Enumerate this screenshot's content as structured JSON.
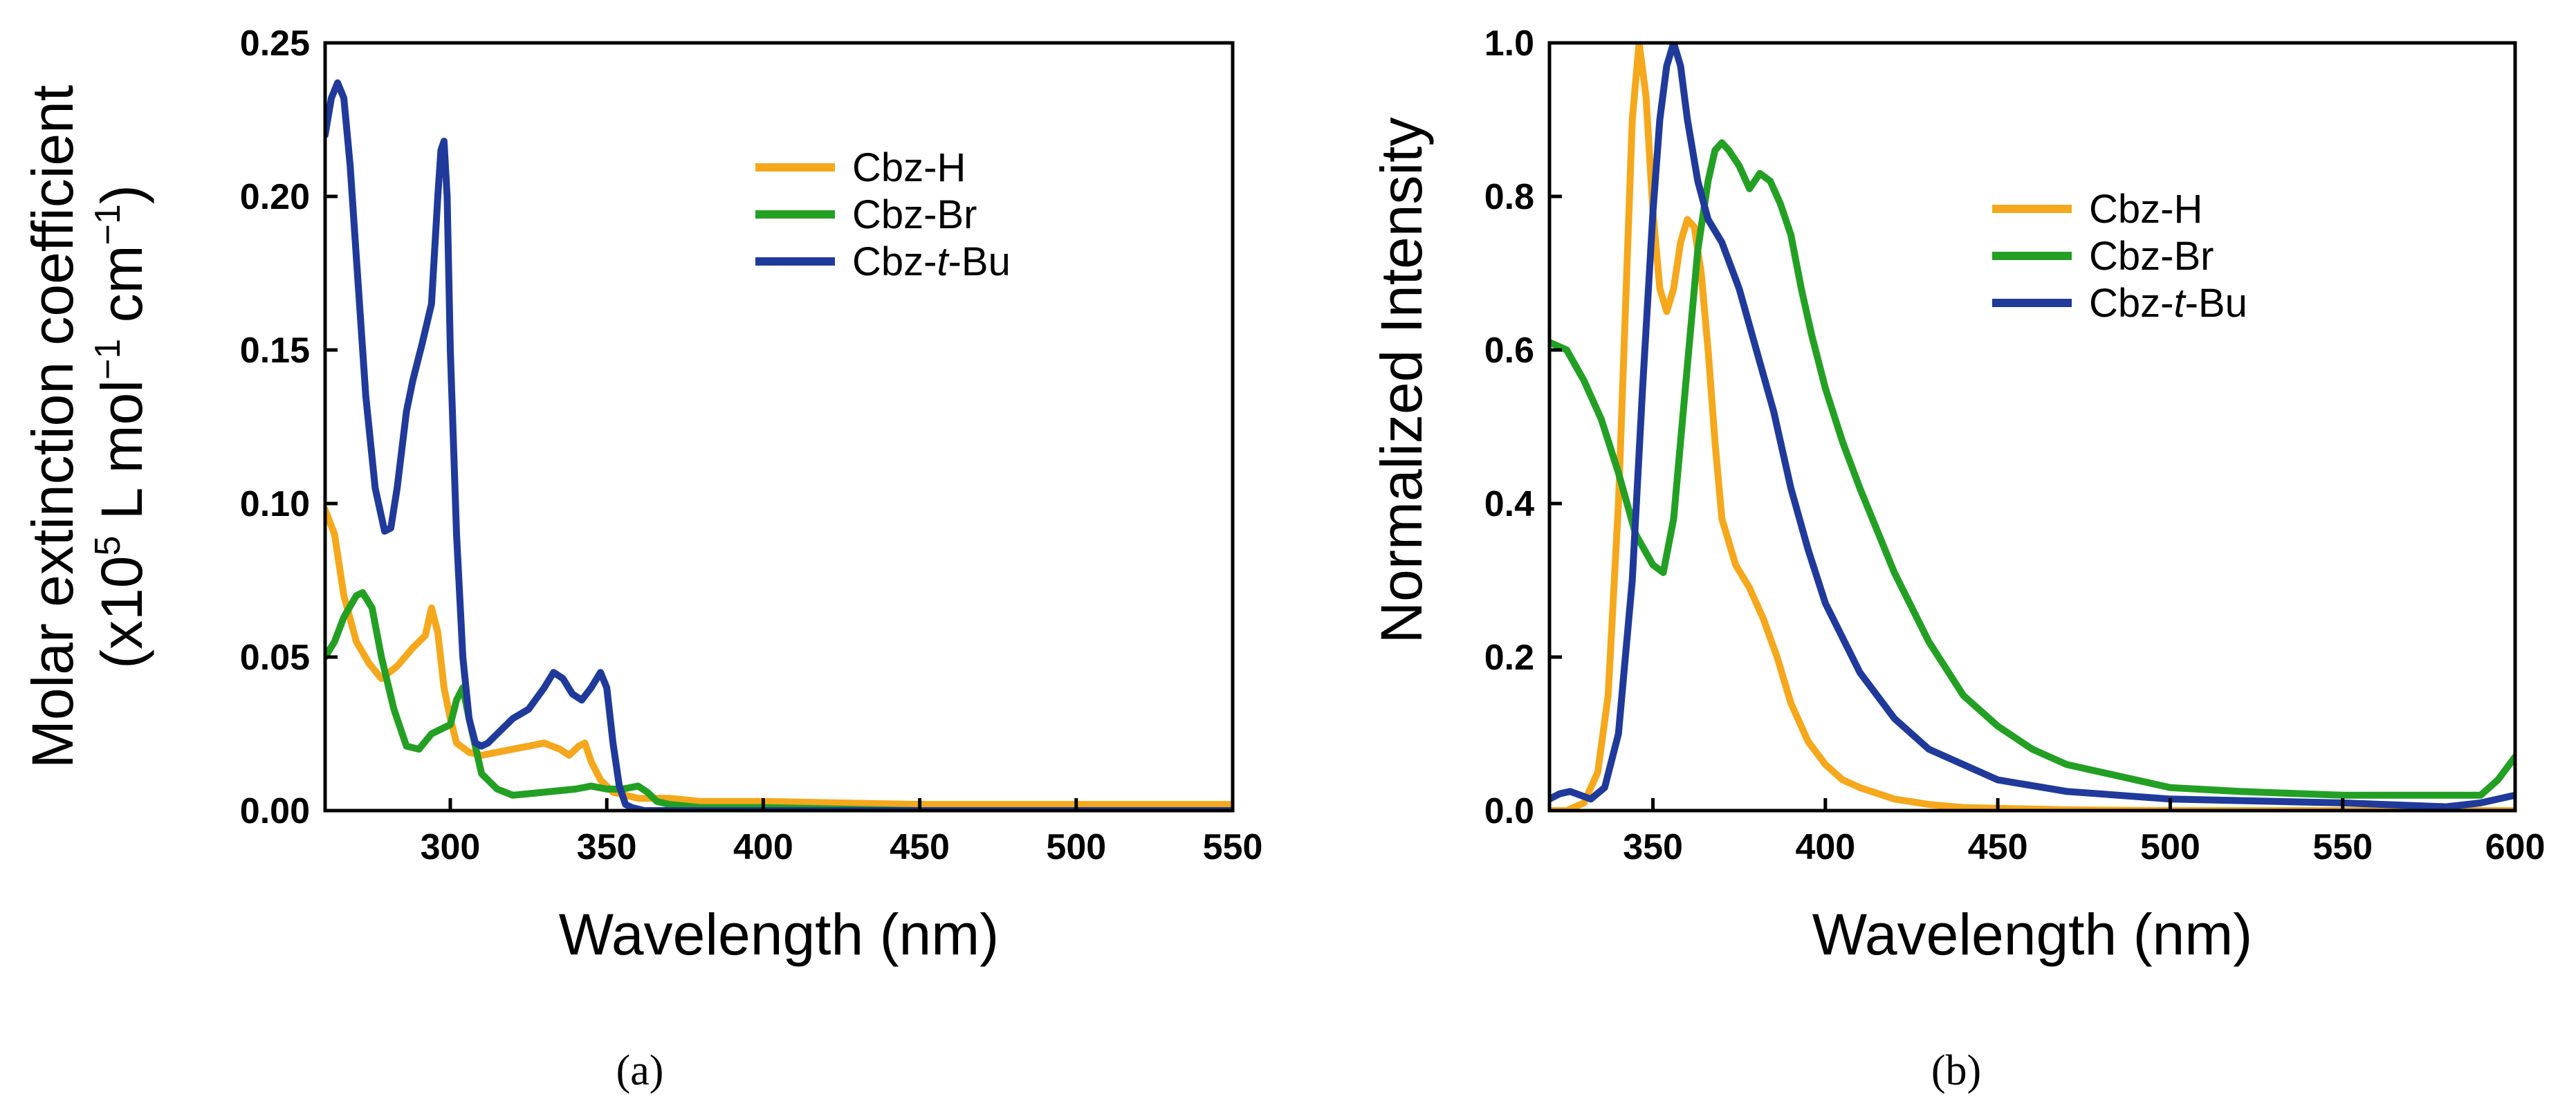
{
  "colors": {
    "Cbz-H": "#F5A81C",
    "Cbz-Br": "#23A023",
    "Cbz-t-Bu": "#1F3A9A"
  },
  "chart_data": [
    {
      "type": "line",
      "panel_label": "(a)",
      "title": "",
      "xlabel": "Wavelength (nm)",
      "ylabel_line1": "Molar extinction coefficient",
      "ylabel_line2_parts": [
        "(x10",
        "5",
        " L mol",
        "−1",
        " cm",
        "−1",
        ")"
      ],
      "xlim": [
        260,
        550
      ],
      "ylim": [
        0,
        0.25
      ],
      "xticks": [
        300,
        350,
        400,
        450,
        500,
        550
      ],
      "yticks": [
        0.0,
        0.05,
        0.1,
        0.15,
        0.2,
        0.25
      ],
      "ytick_labels": [
        "0.00",
        "0.05",
        "0.10",
        "0.15",
        "0.20",
        "0.25"
      ],
      "legend_position": "top-right",
      "legend": [
        {
          "prefix": "Cbz-",
          "italic": "",
          "suffix": "H",
          "series": "Cbz-H"
        },
        {
          "prefix": "Cbz-",
          "italic": "",
          "suffix": "Br",
          "series": "Cbz-Br"
        },
        {
          "prefix": "Cbz-",
          "italic": "t",
          "suffix": "-Bu",
          "series": "Cbz-t-Bu"
        }
      ],
      "series": [
        {
          "name": "Cbz-H",
          "x": [
            260,
            263,
            266,
            270,
            274,
            278,
            283,
            288,
            292,
            294,
            296,
            298,
            300,
            302,
            306,
            310,
            315,
            320,
            325,
            330,
            335,
            338,
            341,
            343,
            345,
            348,
            352,
            356,
            360,
            365,
            370,
            380,
            400,
            450,
            500,
            550
          ],
          "y": [
            0.098,
            0.09,
            0.07,
            0.055,
            0.048,
            0.043,
            0.047,
            0.053,
            0.057,
            0.066,
            0.058,
            0.04,
            0.03,
            0.022,
            0.019,
            0.018,
            0.019,
            0.02,
            0.021,
            0.022,
            0.02,
            0.018,
            0.021,
            0.022,
            0.016,
            0.01,
            0.006,
            0.005,
            0.004,
            0.004,
            0.004,
            0.003,
            0.003,
            0.002,
            0.002,
            0.002
          ]
        },
        {
          "name": "Cbz-Br",
          "x": [
            260,
            263,
            266,
            270,
            272,
            275,
            278,
            282,
            286,
            290,
            294,
            298,
            300,
            302,
            304,
            306,
            310,
            315,
            320,
            330,
            340,
            345,
            350,
            355,
            360,
            363,
            366,
            370,
            380,
            400,
            450,
            500,
            550
          ],
          "y": [
            0.05,
            0.055,
            0.063,
            0.07,
            0.071,
            0.066,
            0.05,
            0.033,
            0.021,
            0.02,
            0.025,
            0.027,
            0.028,
            0.036,
            0.04,
            0.03,
            0.012,
            0.007,
            0.005,
            0.006,
            0.007,
            0.008,
            0.007,
            0.007,
            0.008,
            0.006,
            0.003,
            0.002,
            0.001,
            0.001,
            0.0,
            0.0,
            0.0
          ]
        },
        {
          "name": "Cbz-t-Bu",
          "x": [
            260,
            262,
            264,
            266,
            268,
            270,
            273,
            276,
            279,
            281,
            283,
            286,
            288,
            291,
            294,
            296,
            297,
            298,
            299,
            300,
            302,
            304,
            306,
            308,
            310,
            312,
            315,
            320,
            325,
            330,
            333,
            336,
            339,
            342,
            345,
            348,
            350,
            352,
            354,
            356,
            358,
            362,
            370,
            400,
            450,
            500,
            550
          ],
          "y": [
            0.22,
            0.232,
            0.237,
            0.232,
            0.21,
            0.18,
            0.135,
            0.105,
            0.091,
            0.092,
            0.105,
            0.13,
            0.14,
            0.152,
            0.165,
            0.2,
            0.215,
            0.218,
            0.2,
            0.15,
            0.09,
            0.05,
            0.03,
            0.022,
            0.021,
            0.022,
            0.025,
            0.03,
            0.033,
            0.04,
            0.045,
            0.043,
            0.038,
            0.036,
            0.04,
            0.045,
            0.04,
            0.022,
            0.008,
            0.002,
            0.001,
            0.0,
            0.0,
            0.0,
            0.0,
            0.0,
            0.0
          ]
        }
      ]
    },
    {
      "type": "line",
      "panel_label": "(b)",
      "title": "",
      "xlabel": "Wavelength (nm)",
      "ylabel": "Normalized Intensity",
      "xlim": [
        320,
        600
      ],
      "ylim": [
        0,
        1.0
      ],
      "xticks": [
        350,
        400,
        450,
        500,
        550,
        600
      ],
      "yticks": [
        0.0,
        0.2,
        0.4,
        0.6,
        0.8,
        1.0
      ],
      "ytick_labels": [
        "0.0",
        "0.2",
        "0.4",
        "0.6",
        "0.8",
        "1.0"
      ],
      "legend_position": "top-right",
      "legend": [
        {
          "prefix": "Cbz-",
          "italic": "",
          "suffix": "H",
          "series": "Cbz-H"
        },
        {
          "prefix": "Cbz-",
          "italic": "",
          "suffix": "Br",
          "series": "Cbz-Br"
        },
        {
          "prefix": "Cbz-",
          "italic": "t",
          "suffix": "-Bu",
          "series": "Cbz-t-Bu"
        }
      ],
      "series": [
        {
          "name": "Cbz-H",
          "x": [
            320,
            325,
            330,
            334,
            337,
            340,
            342,
            344,
            346,
            348,
            350,
            352,
            354,
            356,
            358,
            360,
            362,
            364,
            366,
            368,
            370,
            374,
            378,
            382,
            386,
            390,
            395,
            400,
            405,
            410,
            420,
            430,
            440,
            450,
            470,
            500,
            550,
            600
          ],
          "y": [
            0.0,
            0.0,
            0.01,
            0.05,
            0.15,
            0.4,
            0.65,
            0.9,
            1.0,
            0.93,
            0.78,
            0.68,
            0.65,
            0.68,
            0.74,
            0.77,
            0.76,
            0.7,
            0.6,
            0.48,
            0.38,
            0.32,
            0.29,
            0.25,
            0.2,
            0.14,
            0.09,
            0.06,
            0.04,
            0.03,
            0.015,
            0.008,
            0.004,
            0.003,
            0.001,
            0.0,
            0.0,
            0.0
          ]
        },
        {
          "name": "Cbz-Br",
          "x": [
            320,
            325,
            330,
            335,
            340,
            345,
            350,
            353,
            356,
            360,
            363,
            366,
            368,
            370,
            372,
            375,
            378,
            381,
            384,
            387,
            390,
            393,
            396,
            400,
            405,
            410,
            420,
            430,
            440,
            450,
            460,
            470,
            480,
            490,
            500,
            520,
            550,
            580,
            590,
            595,
            600
          ],
          "y": [
            0.61,
            0.6,
            0.56,
            0.51,
            0.44,
            0.36,
            0.32,
            0.31,
            0.38,
            0.58,
            0.73,
            0.82,
            0.86,
            0.87,
            0.86,
            0.84,
            0.81,
            0.83,
            0.82,
            0.79,
            0.75,
            0.68,
            0.62,
            0.55,
            0.48,
            0.42,
            0.31,
            0.22,
            0.15,
            0.11,
            0.08,
            0.06,
            0.05,
            0.04,
            0.03,
            0.025,
            0.02,
            0.02,
            0.02,
            0.04,
            0.07
          ]
        },
        {
          "name": "Cbz-t-Bu",
          "x": [
            320,
            323,
            326,
            329,
            332,
            336,
            340,
            344,
            347,
            350,
            352,
            354,
            356,
            358,
            360,
            363,
            366,
            370,
            375,
            380,
            385,
            390,
            395,
            400,
            410,
            420,
            430,
            440,
            450,
            470,
            500,
            550,
            580,
            590,
            600
          ],
          "y": [
            0.015,
            0.022,
            0.025,
            0.02,
            0.015,
            0.03,
            0.1,
            0.3,
            0.55,
            0.78,
            0.9,
            0.97,
            1.0,
            0.97,
            0.9,
            0.82,
            0.77,
            0.74,
            0.68,
            0.6,
            0.52,
            0.42,
            0.34,
            0.27,
            0.18,
            0.12,
            0.08,
            0.06,
            0.04,
            0.025,
            0.015,
            0.01,
            0.005,
            0.01,
            0.02
          ]
        }
      ]
    }
  ]
}
